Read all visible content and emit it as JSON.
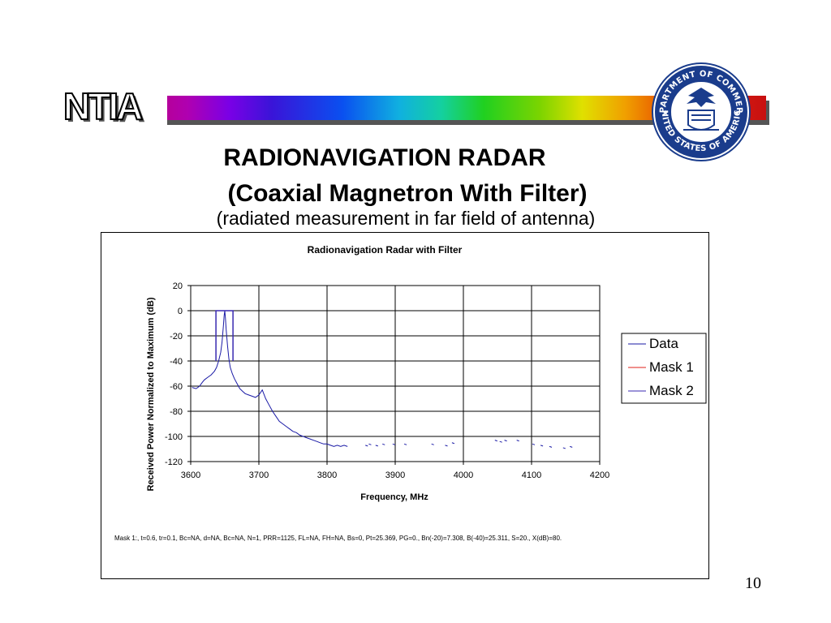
{
  "header": {
    "logo_text": "NTIA",
    "seal_top_text": "DEPARTMENT OF COMMERCE",
    "seal_bottom_text": "UNITED STATES OF AMERICA"
  },
  "slide": {
    "title_line1": "RADIONAVIGATION RADAR",
    "title_line2": "(Coaxial Magnetron With Filter)",
    "subtitle": "(radiated measurement in far field of antenna)",
    "page_number": "10"
  },
  "chart_data": {
    "type": "line",
    "title": "Radionavigation Radar with Filter",
    "xlabel": "Frequency, MHz",
    "ylabel": "Received Power Normalized to Maximum (dB)",
    "xlim": [
      3600,
      4200
    ],
    "ylim": [
      -120,
      20
    ],
    "x_ticks": [
      "3600",
      "3700",
      "3800",
      "3900",
      "4000",
      "4100",
      "4200"
    ],
    "y_ticks": [
      "20",
      "0",
      "-20",
      "-40",
      "-60",
      "-80",
      "-100",
      "-120"
    ],
    "grid": true,
    "legend_position": "right",
    "footnote": "Mask  1:, t=0.6, tr=0.1, Bc=NA, d=NA, Bc=NA, N=1, PRR=1125, FL=NA, FH=NA, Bs=0, Pt=25.369, PG=0., Bn(-20)=7.308, B(-40)=25.311, S=20., X(dB)=80.",
    "series": [
      {
        "name": "Data",
        "color": "#1a1aa6",
        "x": [
          3602,
          3608,
          3613,
          3617,
          3620,
          3625,
          3630,
          3635,
          3638,
          3641,
          3644,
          3646,
          3648,
          3649,
          3650,
          3651,
          3652,
          3654,
          3656,
          3658,
          3661,
          3664,
          3668,
          3672,
          3676,
          3680,
          3685,
          3690,
          3695,
          3700,
          3705,
          3710,
          3715,
          3720,
          3725,
          3730,
          3735,
          3740,
          3745,
          3750,
          3755,
          3760,
          3765,
          3770,
          3775,
          3780,
          3785,
          3790,
          3795,
          3800,
          3805,
          3810,
          3815,
          3820,
          3825,
          3830
        ],
        "y": [
          -61,
          -62,
          -60,
          -57,
          -55,
          -53,
          -51,
          -48,
          -45,
          -40,
          -33,
          -25,
          -12,
          -4,
          0,
          -6,
          -15,
          -28,
          -38,
          -45,
          -50,
          -54,
          -58,
          -62,
          -64,
          -66,
          -67,
          -68,
          -69,
          -67,
          -63,
          -70,
          -75,
          -80,
          -84,
          -88,
          -90,
          -92,
          -94,
          -96,
          -97,
          -99,
          -100,
          -101,
          -102,
          -103,
          -104,
          -105,
          -106,
          -106,
          -107,
          -108,
          -107,
          -108,
          -107,
          -108
        ]
      },
      {
        "name": "Mask 1",
        "color": "#e0201a",
        "x": [],
        "y": []
      },
      {
        "name": "Mask 2",
        "color": "#3a2ab0",
        "x": [
          3637,
          3637,
          3637,
          3662,
          3662,
          3662
        ],
        "y": [
          -40,
          -20,
          0,
          0,
          -20,
          -40
        ]
      }
    ],
    "scattered_points": {
      "x": [
        3858,
        3863,
        3873,
        3883,
        3898,
        3915,
        3955,
        3975,
        3985,
        4048,
        4055,
        4062,
        4080,
        4103,
        4115,
        4128,
        4148,
        4158
      ],
      "y": [
        -107,
        -106,
        -107,
        -106,
        -106,
        -106,
        -106,
        -107,
        -105,
        -103,
        -104,
        -103,
        -103,
        -106,
        -107,
        -108,
        -109,
        -108
      ]
    }
  }
}
